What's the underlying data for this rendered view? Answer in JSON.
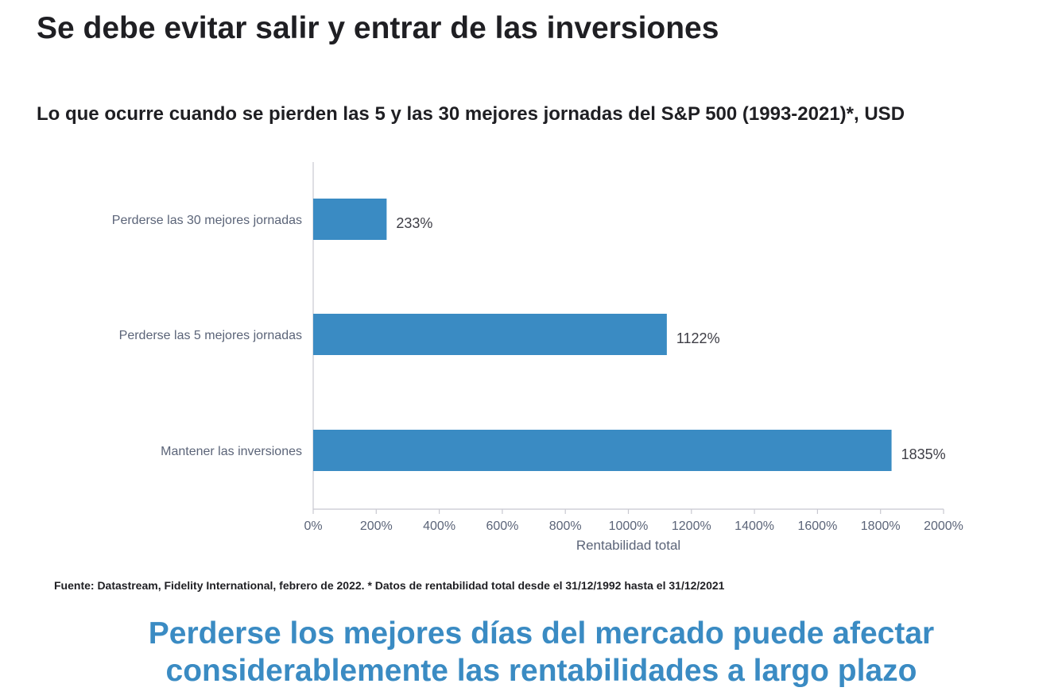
{
  "page_title": "Se debe evitar salir y entrar de las inversiones",
  "source_note": "Fuente: Datastream, Fidelity International, febrero de 2022. * Datos de rentabilidad total desde el 31/12/1992 hasta el 31/12/2021",
  "conclusion": {
    "line1": "Perderse los mejores días del mercado puede afectar",
    "line2": "considerablemente las rentabilidades a largo plazo"
  },
  "colors": {
    "bar": "#3a8bc3",
    "conclusion_text": "#3a8bc3",
    "axis": "#c8c8d0",
    "tick_label": "#5b6478"
  },
  "chart_data": {
    "type": "bar",
    "orientation": "horizontal",
    "title": "Lo que ocurre cuando se pierden las 5 y las 30 mejores jornadas del S&P 500 (1993-2021)*, USD",
    "categories": [
      "Perderse las 30 mejores jornadas",
      "Perderse las 5 mejores jornadas",
      "Mantener las inversiones"
    ],
    "values": [
      233,
      1122,
      1835
    ],
    "value_labels": [
      "233%",
      "1122%",
      "1835%"
    ],
    "xlabel": "Rentabilidad total",
    "ylabel": "",
    "xlim": [
      0,
      2000
    ],
    "xticks": [
      0,
      200,
      400,
      600,
      800,
      1000,
      1200,
      1400,
      1600,
      1800,
      2000
    ],
    "xtick_labels": [
      "0%",
      "200%",
      "400%",
      "600%",
      "800%",
      "1000%",
      "1200%",
      "1400%",
      "1600%",
      "1800%",
      "2000%"
    ],
    "grid": false,
    "legend": "none"
  }
}
